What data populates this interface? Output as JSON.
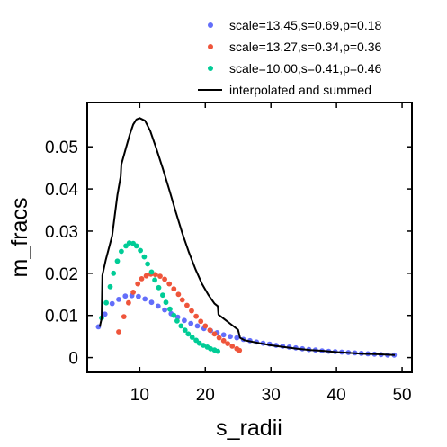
{
  "chart_data": {
    "type": "scatter",
    "xlabel": "s_radii",
    "ylabel": "m_fracs",
    "xlim": [
      2,
      51.5
    ],
    "ylim": [
      -0.0035,
      0.0605
    ],
    "xticks": [
      10,
      20,
      30,
      40,
      50
    ],
    "yticks": [
      0,
      0.01,
      0.02,
      0.03,
      0.04,
      0.05
    ],
    "xtick_labels": [
      "10",
      "20",
      "30",
      "40",
      "50"
    ],
    "ytick_labels": [
      "0",
      "0.01",
      "0.02",
      "0.03",
      "0.04",
      "0.05"
    ],
    "legend_position": "top-right, outside plot",
    "series": [
      {
        "name": "scale=13.45,s=0.69,p=0.18",
        "kind": "points",
        "color": "#636efa",
        "points": [
          [
            3.7,
            0.0073
          ],
          [
            4.7,
            0.0103
          ],
          [
            5.8,
            0.0128
          ],
          [
            6.8,
            0.0138
          ],
          [
            7.8,
            0.0146
          ],
          [
            8.8,
            0.0147
          ],
          [
            9.8,
            0.0145
          ],
          [
            10.8,
            0.0139
          ],
          [
            11.8,
            0.0131
          ],
          [
            12.8,
            0.0122
          ],
          [
            13.8,
            0.0113
          ],
          [
            14.8,
            0.0104
          ],
          [
            15.8,
            0.0096
          ],
          [
            16.8,
            0.0088
          ],
          [
            17.8,
            0.0081
          ],
          [
            18.8,
            0.0075
          ],
          [
            19.8,
            0.0069
          ],
          [
            20.8,
            0.0064
          ],
          [
            21.8,
            0.0059
          ],
          [
            22.8,
            0.0054
          ],
          [
            23.8,
            0.005
          ],
          [
            24.8,
            0.0047
          ],
          [
            25.8,
            0.0043
          ],
          [
            26.8,
            0.004
          ],
          [
            27.8,
            0.0037
          ],
          [
            28.8,
            0.0034
          ],
          [
            29.8,
            0.0032
          ],
          [
            30.8,
            0.0029
          ],
          [
            31.8,
            0.0027
          ],
          [
            32.8,
            0.0025
          ],
          [
            33.8,
            0.0023
          ],
          [
            34.8,
            0.0021
          ],
          [
            35.8,
            0.0019
          ],
          [
            36.8,
            0.0018
          ],
          [
            37.8,
            0.0016
          ],
          [
            38.8,
            0.0015
          ],
          [
            39.8,
            0.0014
          ],
          [
            40.8,
            0.0013
          ],
          [
            41.8,
            0.0012
          ],
          [
            42.8,
            0.0011
          ],
          [
            43.8,
            0.001
          ],
          [
            44.8,
            0.0009
          ],
          [
            45.8,
            0.0008
          ],
          [
            46.8,
            0.0007
          ],
          [
            47.8,
            0.0006
          ],
          [
            48.8,
            0.0006
          ]
        ]
      },
      {
        "name": "scale=13.27,s=0.34,p=0.36",
        "kind": "points",
        "color": "#ef553b",
        "points": [
          [
            6.8,
            0.0061
          ],
          [
            7.6,
            0.0097
          ],
          [
            8.3,
            0.013
          ],
          [
            9.0,
            0.0155
          ],
          [
            9.7,
            0.0175
          ],
          [
            10.3,
            0.0187
          ],
          [
            11.0,
            0.0194
          ],
          [
            11.7,
            0.0198
          ],
          [
            12.4,
            0.0197
          ],
          [
            13.1,
            0.0193
          ],
          [
            13.8,
            0.0186
          ],
          [
            14.5,
            0.0175
          ],
          [
            15.2,
            0.0163
          ],
          [
            15.9,
            0.015
          ],
          [
            16.5,
            0.0137
          ],
          [
            17.2,
            0.0124
          ],
          [
            17.9,
            0.0111
          ],
          [
            18.6,
            0.0098
          ],
          [
            19.3,
            0.0086
          ],
          [
            20.0,
            0.0075
          ],
          [
            20.7,
            0.0065
          ],
          [
            21.4,
            0.0056
          ],
          [
            22.1,
            0.0047
          ],
          [
            22.8,
            0.004
          ],
          [
            23.4,
            0.0033
          ],
          [
            24.1,
            0.0027
          ],
          [
            24.8,
            0.0021
          ],
          [
            25.2,
            0.0017
          ]
        ]
      },
      {
        "name": "scale=10.00,s=0.41,p=0.46",
        "kind": "points",
        "color": "#00cc96",
        "points": [
          [
            4.2,
            0.0094
          ],
          [
            4.9,
            0.013
          ],
          [
            5.5,
            0.0168
          ],
          [
            6.0,
            0.02
          ],
          [
            6.6,
            0.0229
          ],
          [
            7.2,
            0.0252
          ],
          [
            7.9,
            0.0265
          ],
          [
            8.4,
            0.0272
          ],
          [
            9.0,
            0.0271
          ],
          [
            9.5,
            0.0265
          ],
          [
            10.1,
            0.0254
          ],
          [
            10.7,
            0.0239
          ],
          [
            11.2,
            0.0222
          ],
          [
            11.8,
            0.0203
          ],
          [
            12.3,
            0.0184
          ],
          [
            12.9,
            0.0166
          ],
          [
            13.5,
            0.0148
          ],
          [
            14.0,
            0.0131
          ],
          [
            14.6,
            0.0115
          ],
          [
            15.2,
            0.01
          ],
          [
            15.7,
            0.0087
          ],
          [
            16.3,
            0.0075
          ],
          [
            16.9,
            0.0065
          ],
          [
            17.4,
            0.0056
          ],
          [
            18.0,
            0.0048
          ],
          [
            18.6,
            0.0041
          ],
          [
            19.1,
            0.0034
          ],
          [
            19.7,
            0.0029
          ],
          [
            20.3,
            0.0025
          ],
          [
            20.8,
            0.0021
          ],
          [
            21.4,
            0.0018
          ],
          [
            21.9,
            0.0015
          ]
        ]
      },
      {
        "name": "interpolated and summed",
        "kind": "line",
        "color": "#000000",
        "points": [
          [
            3.9,
            0.0073
          ],
          [
            4.2,
            0.0093
          ],
          [
            4.3,
            0.0195
          ],
          [
            4.8,
            0.023
          ],
          [
            5.8,
            0.0289
          ],
          [
            6.6,
            0.0385
          ],
          [
            7.1,
            0.043
          ],
          [
            7.2,
            0.0458
          ],
          [
            7.9,
            0.0497
          ],
          [
            8.5,
            0.053
          ],
          [
            9.0,
            0.0553
          ],
          [
            9.5,
            0.0565
          ],
          [
            10.0,
            0.0568
          ],
          [
            10.8,
            0.0562
          ],
          [
            11.6,
            0.0538
          ],
          [
            12.5,
            0.0497
          ],
          [
            13.5,
            0.0449
          ],
          [
            14.5,
            0.0398
          ],
          [
            15.5,
            0.0345
          ],
          [
            16.5,
            0.0295
          ],
          [
            17.5,
            0.025
          ],
          [
            18.5,
            0.021
          ],
          [
            19.5,
            0.0175
          ],
          [
            20.5,
            0.0148
          ],
          [
            21.4,
            0.0128
          ],
          [
            21.9,
            0.0122
          ],
          [
            22.0,
            0.0102
          ],
          [
            23.0,
            0.009
          ],
          [
            24.0,
            0.0078
          ],
          [
            25.0,
            0.0066
          ],
          [
            25.3,
            0.0047
          ],
          [
            26.0,
            0.0041
          ],
          [
            28.0,
            0.0035
          ],
          [
            30.0,
            0.0029
          ],
          [
            32.0,
            0.0025
          ],
          [
            34.0,
            0.0021
          ],
          [
            36.0,
            0.0018
          ],
          [
            38.0,
            0.0016
          ],
          [
            40.0,
            0.0013
          ],
          [
            42.0,
            0.0011
          ],
          [
            44.0,
            0.0009
          ],
          [
            46.0,
            0.0008
          ],
          [
            48.9,
            0.0006
          ]
        ]
      }
    ]
  }
}
